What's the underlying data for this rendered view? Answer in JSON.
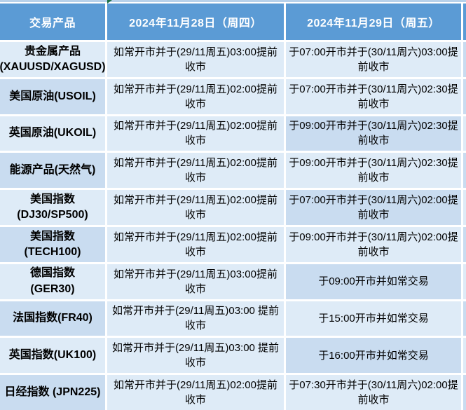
{
  "meta": {
    "description_colors": {
      "header_blue": "#5B9BD5",
      "band_light": "#DEEBF7",
      "band_dark": "#C9DCF0",
      "gutter_white": "#FFFFFF",
      "top_strip_blue": "#B7D1EA",
      "error_indicator_green": "#1E7145",
      "header_text": "#FFFFFF",
      "body_text": "#000000"
    }
  },
  "table": {
    "columns": [
      "交易产品",
      "2024年11月28日（周四）",
      "2024年11月29日（周五）"
    ],
    "rows": [
      {
        "product": "贵金属产品\n(XAUUSD/XAGUSD)",
        "thursday": "如常开市并于(29/11周五)03:00提前收市",
        "friday": "于07:00开市并于(30/11周六)03:00提前收市",
        "bands": {
          "c1": "L",
          "c2": "L",
          "c3": "L",
          "edge": "D"
        }
      },
      {
        "product": "美国原油(USOIL)",
        "thursday": "如常开市并于(29/11周五)02:00提前收市",
        "friday": "于07:00开市并于(30/11周六)02:30提前收市",
        "bands": {
          "c1": "D",
          "c2": "L",
          "c3": "L",
          "edge": "D"
        }
      },
      {
        "product": "英国原油(UKOIL)",
        "thursday": "如常开市并于(29/11周五)02:00提前收市",
        "friday": "于09:00开市并于(30/11周六)02:30提前收市",
        "bands": {
          "c1": "L",
          "c2": "L",
          "c3": "D",
          "edge": "L"
        }
      },
      {
        "product": "能源产品(天然气)",
        "thursday": "如常开市并于(29/11周五)02:00提前收市",
        "friday": "于09:00开市并于(30/11周六)02:30提前收市",
        "bands": {
          "c1": "D",
          "c2": "L",
          "c3": "L",
          "edge": "D"
        }
      },
      {
        "product": "美国指数\n(DJ30/SP500)",
        "thursday": "如常开市并于(29/11周五)02:00提前收市",
        "friday": "于07:00开市并于(30/11周六)02:00提前收市",
        "bands": {
          "c1": "L",
          "c2": "L",
          "c3": "D",
          "edge": "L"
        }
      },
      {
        "product": "美国指数\n(TECH100)",
        "thursday": "如常开市并于(29/11周五)02:00提前收市",
        "friday": "于09:00开市并于(30/11周六)02:00提前收市",
        "bands": {
          "c1": "D",
          "c2": "L",
          "c3": "L",
          "edge": "D"
        }
      },
      {
        "product": "德国指数\n(GER30)",
        "thursday": "如常开市并于(29/11周五)03:00提前收市",
        "friday": "于09:00开市并如常交易",
        "bands": {
          "c1": "L",
          "c2": "L",
          "c3": "D",
          "edge": "L"
        }
      },
      {
        "product": "法国指数(FR40)",
        "thursday": "如常开市并于(29/11周五)03:00 提前收市",
        "friday": "于15:00开市并如常交易",
        "bands": {
          "c1": "D",
          "c2": "L",
          "c3": "L",
          "edge": "D"
        }
      },
      {
        "product": "英国指数(UK100)",
        "thursday": "如常开市并于(29/11周五)03:00 提前收市",
        "friday": "于16:00开市并如常交易",
        "bands": {
          "c1": "L",
          "c2": "L",
          "c3": "D",
          "edge": "L"
        }
      },
      {
        "product": "日经指数 (JPN225)",
        "thursday": "如常开市并于(29/11周五)02:00提前收市",
        "friday": "于07:30开市并于(30/11周六)02:00提前收市",
        "bands": {
          "c1": "D",
          "c2": "L",
          "c3": "L",
          "edge": "D"
        }
      }
    ]
  },
  "icons": {
    "error_indicator": "excel-error-corner-triangle"
  }
}
